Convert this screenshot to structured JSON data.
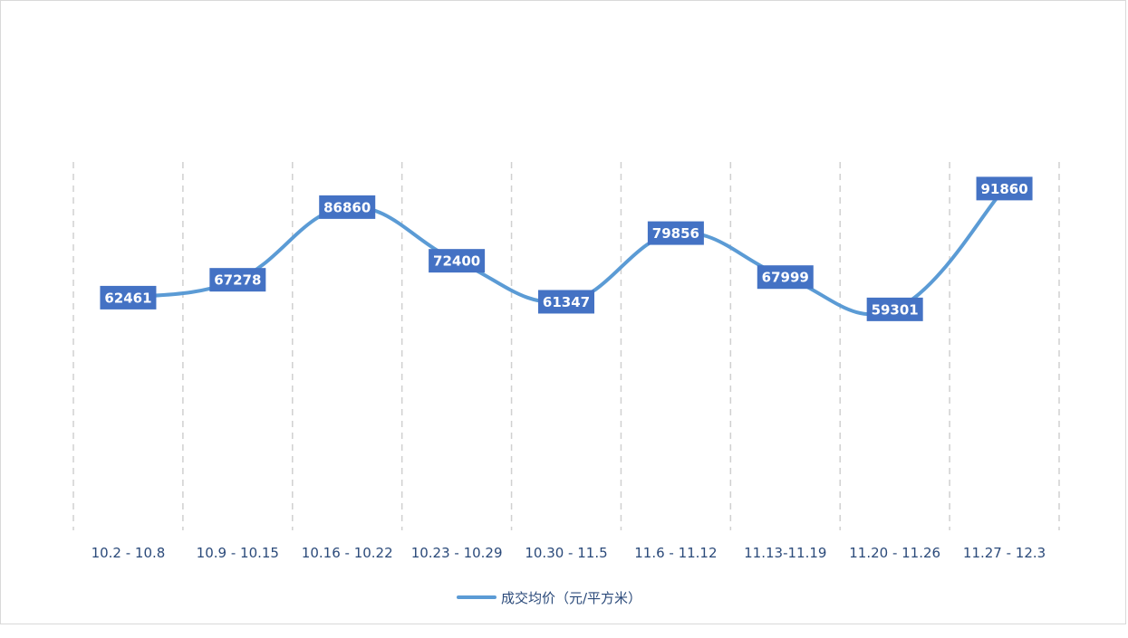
{
  "chart_data": {
    "type": "line",
    "categories": [
      "10.2 - 10.8",
      "10.9 - 10.15",
      "10.16 - 10.22",
      "10.23 - 10.29",
      "10.30 - 11.5",
      "11.6 - 11.12",
      "11.13-11.19",
      "11.20 - 11.26",
      "11.27 - 12.3"
    ],
    "series": [
      {
        "name": "成交均价（元/平方米）",
        "values": [
          62461,
          67278,
          86860,
          72400,
          61347,
          79856,
          67999,
          59301,
          91860
        ]
      }
    ],
    "ylim": [
      0,
      120000
    ],
    "grid": "vertical-dashed",
    "legend": "bottom-center",
    "colors": {
      "line": "#5b9bd5",
      "label_bg": "#4472c4",
      "grid": "#d0d0d0",
      "text": "#2b4a7a"
    }
  }
}
